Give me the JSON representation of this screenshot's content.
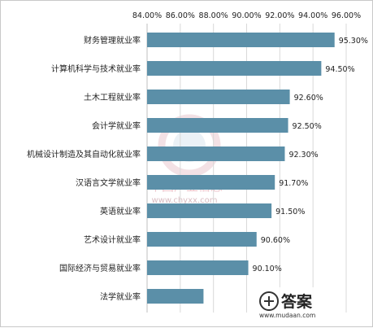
{
  "chart_data": {
    "type": "bar",
    "orientation": "horizontal",
    "x_axis_position": "top",
    "grid": true,
    "xlim": [
      84,
      96
    ],
    "ticks": [
      "84.00%",
      "86.00%",
      "88.00%",
      "90.00%",
      "92.00%",
      "94.00%",
      "96.00%"
    ],
    "categories": [
      "财务管理就业率",
      "计算机科学与技术就业率",
      "土木工程就业率",
      "会计学就业率",
      "机械设计制造及其自动化就业率",
      "汉语言文学就业率",
      "英语就业率",
      "艺术设计就业率",
      "国际经济与贸易就业率",
      "法学就业率"
    ],
    "values": [
      95.3,
      94.5,
      92.6,
      92.5,
      92.3,
      91.7,
      91.5,
      90.6,
      90.1,
      87.4
    ],
    "labels": [
      "95.30%",
      "94.50%",
      "92.60%",
      "92.50%",
      "92.30%",
      "91.70%",
      "91.50%",
      "90.60%",
      "90.10%",
      ""
    ],
    "bar_color": "#5b8fa8"
  },
  "watermark": {
    "brand": "中国产业信息",
    "url": "www.chyxx.com"
  },
  "answer_logo": {
    "text": "答案",
    "url": "www.mudaan.com"
  }
}
